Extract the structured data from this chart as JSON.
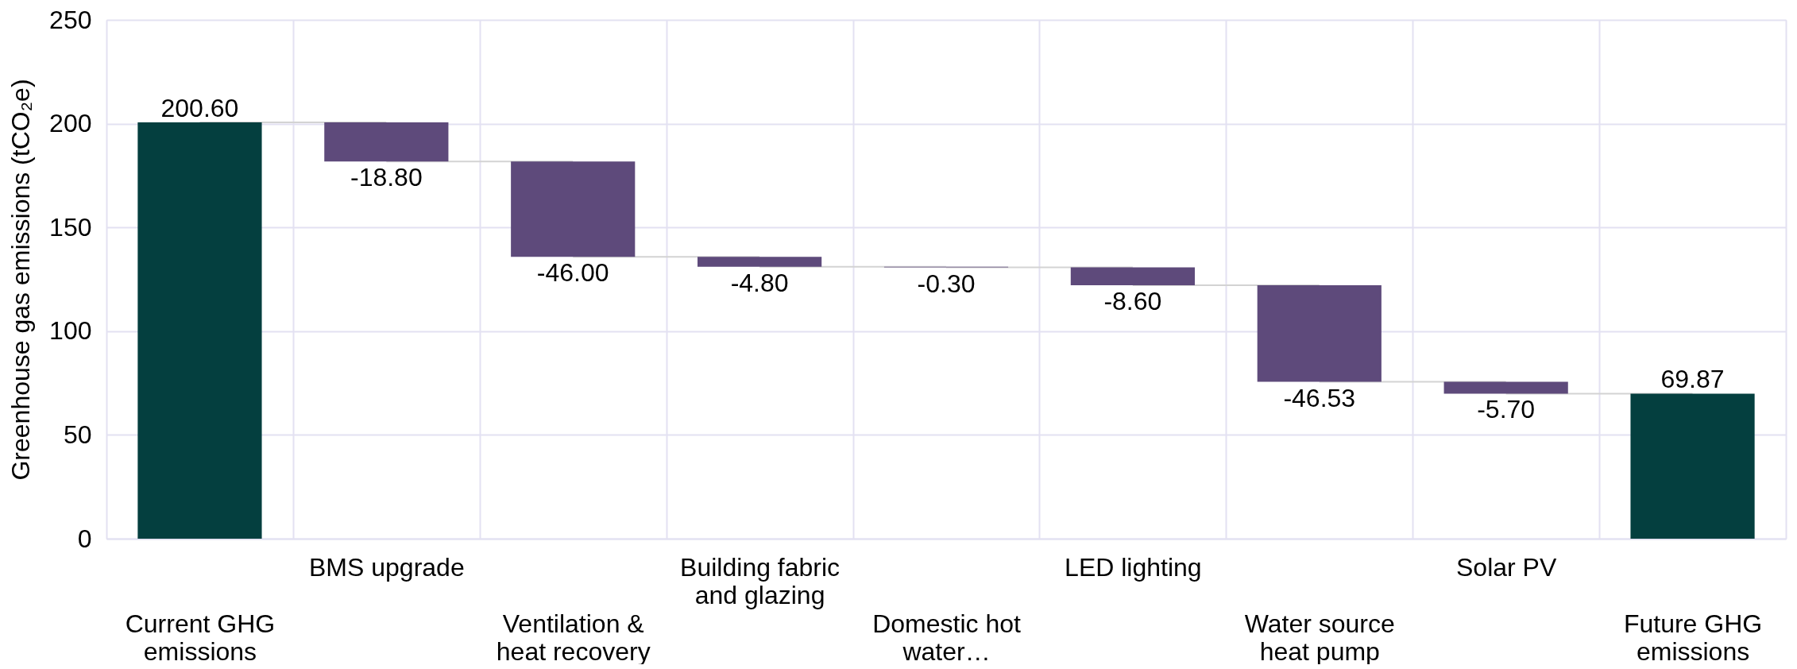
{
  "chart_data": {
    "type": "bar",
    "ylabel": "Greenhouse gas emissions (tCO₂e)",
    "categories": [
      "Current GHG emissions",
      "BMS upgrade",
      "Ventilation & heat recovery",
      "Building fabric and glazing",
      "Domestic hot water…",
      "LED lighting",
      "Water source heat pump",
      "Solar PV",
      "Future GHG emissions"
    ],
    "values": [
      200.6,
      -18.8,
      -46.0,
      -4.8,
      -0.3,
      -8.6,
      -46.53,
      -5.7,
      69.87
    ],
    "base": [
      0,
      200.6,
      181.8,
      135.8,
      131.0,
      130.7,
      122.1,
      75.57,
      0
    ],
    "colors": [
      "#043f3f",
      "#5e4a7b",
      "#5e4a7b",
      "#5e4a7b",
      "#5e4a7b",
      "#5e4a7b",
      "#5e4a7b",
      "#5e4a7b",
      "#043f3f"
    ],
    "value_labels": [
      "200.60",
      "-18.80",
      "-46.00",
      "-4.80",
      "-0.30",
      "-8.60",
      "-46.53",
      "-5.70",
      "69.87"
    ],
    "ylim": [
      0,
      250
    ],
    "yticks": [
      0,
      50,
      100,
      150,
      200,
      250
    ],
    "grid": true
  }
}
